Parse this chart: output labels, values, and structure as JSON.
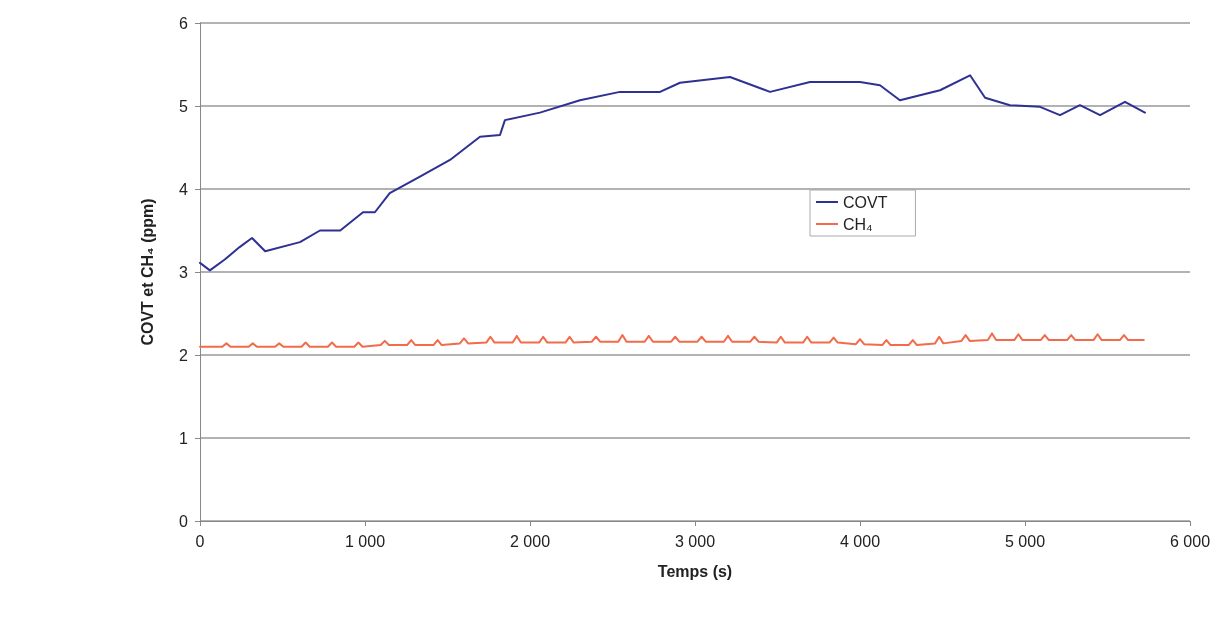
{
  "chart_data": {
    "type": "line",
    "xlabel": "Temps (s)",
    "ylabel": "COVT et CH₄ (ppm)",
    "xlim": [
      0,
      6000
    ],
    "xticks": [
      0,
      {
        "value": 1000,
        "label": "1 000"
      },
      {
        "value": 2000,
        "label": "2 000"
      },
      {
        "value": 3000,
        "label": "3 000"
      },
      {
        "value": 4000,
        "label": "4 000"
      },
      {
        "value": 5000,
        "label": "5 000"
      },
      {
        "value": 6000,
        "label": "6 000"
      }
    ],
    "ylim": [
      0,
      6
    ],
    "yticks": [
      0,
      1,
      2,
      3,
      4,
      5,
      6
    ],
    "grid": "y",
    "legend": "center",
    "marker": "none",
    "line_style": "solid",
    "series": [
      {
        "name": "COVT",
        "color": "#2e3192",
        "x": [
          0,
          60,
          150,
          240,
          315,
          395,
          606,
          727,
          850,
          988,
          1060,
          1150,
          1333,
          1515,
          1697,
          1818,
          1848,
          2060,
          2303,
          2545,
          2788,
          2909,
          3212,
          3455,
          3697,
          4000,
          4121,
          4242,
          4485,
          4667,
          4758,
          4909,
          5091,
          5212,
          5333,
          5455,
          5606,
          5727
        ],
        "values": [
          3.11,
          3.02,
          3.15,
          3.3,
          3.41,
          3.25,
          3.36,
          3.5,
          3.5,
          3.72,
          3.72,
          3.95,
          4.15,
          4.35,
          4.63,
          4.65,
          4.83,
          4.92,
          5.07,
          5.17,
          5.17,
          5.28,
          5.35,
          5.17,
          5.29,
          5.29,
          5.25,
          5.07,
          5.19,
          5.37,
          5.1,
          5.01,
          4.99,
          4.89,
          5.01,
          4.89,
          5.05,
          4.92
        ]
      },
      {
        "name": "CH₄",
        "color": "#f26b4a",
        "x": [
          0,
          135,
          160,
          185,
          295,
          320,
          345,
          455,
          480,
          505,
          615,
          640,
          665,
          775,
          800,
          825,
          935,
          960,
          985,
          1095,
          1120,
          1145,
          1255,
          1280,
          1305,
          1415,
          1440,
          1465,
          1575,
          1600,
          1625,
          1735,
          1760,
          1785,
          1895,
          1920,
          1945,
          2055,
          2080,
          2105,
          2215,
          2240,
          2265,
          2375,
          2400,
          2425,
          2535,
          2560,
          2585,
          2695,
          2720,
          2745,
          2855,
          2880,
          2905,
          3015,
          3040,
          3065,
          3175,
          3200,
          3225,
          3335,
          3360,
          3385,
          3495,
          3520,
          3545,
          3655,
          3680,
          3705,
          3815,
          3840,
          3865,
          3975,
          4000,
          4025,
          4135,
          4160,
          4185,
          4295,
          4320,
          4345,
          4455,
          4480,
          4505,
          4615,
          4640,
          4665,
          4775,
          4800,
          4825,
          4935,
          4960,
          4985,
          5095,
          5120,
          5145,
          5255,
          5280,
          5305,
          5415,
          5440,
          5465,
          5575,
          5600,
          5625,
          5720
        ],
        "values": [
          2.1,
          2.1,
          2.14,
          2.1,
          2.1,
          2.14,
          2.1,
          2.1,
          2.14,
          2.1,
          2.1,
          2.15,
          2.1,
          2.1,
          2.15,
          2.1,
          2.1,
          2.15,
          2.1,
          2.12,
          2.17,
          2.12,
          2.12,
          2.18,
          2.12,
          2.12,
          2.18,
          2.12,
          2.14,
          2.2,
          2.14,
          2.15,
          2.22,
          2.15,
          2.15,
          2.23,
          2.15,
          2.15,
          2.22,
          2.15,
          2.15,
          2.22,
          2.15,
          2.16,
          2.22,
          2.16,
          2.16,
          2.24,
          2.16,
          2.16,
          2.23,
          2.16,
          2.16,
          2.22,
          2.16,
          2.16,
          2.22,
          2.16,
          2.16,
          2.23,
          2.16,
          2.16,
          2.22,
          2.16,
          2.15,
          2.22,
          2.15,
          2.15,
          2.22,
          2.15,
          2.15,
          2.21,
          2.15,
          2.13,
          2.19,
          2.13,
          2.12,
          2.18,
          2.12,
          2.12,
          2.18,
          2.12,
          2.14,
          2.22,
          2.14,
          2.17,
          2.24,
          2.17,
          2.18,
          2.26,
          2.18,
          2.18,
          2.25,
          2.18,
          2.18,
          2.24,
          2.18,
          2.18,
          2.24,
          2.18,
          2.18,
          2.25,
          2.18,
          2.18,
          2.24,
          2.18,
          2.18
        ]
      }
    ]
  }
}
